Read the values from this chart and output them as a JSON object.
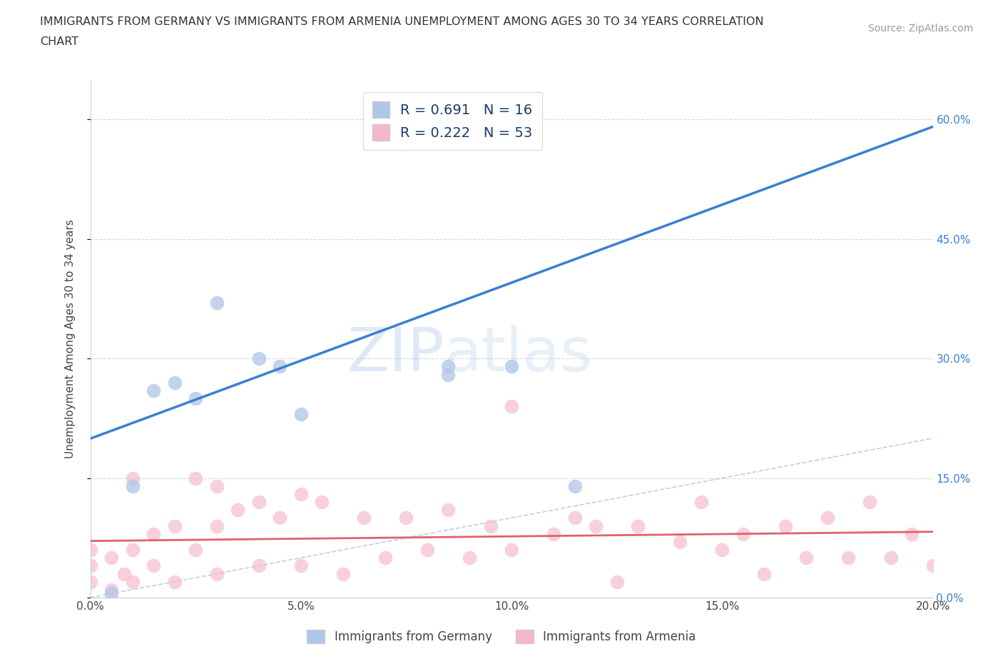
{
  "title_line1": "IMMIGRANTS FROM GERMANY VS IMMIGRANTS FROM ARMENIA UNEMPLOYMENT AMONG AGES 30 TO 34 YEARS CORRELATION",
  "title_line2": "CHART",
  "source": "Source: ZipAtlas.com",
  "ylabel": "Unemployment Among Ages 30 to 34 years",
  "xlim": [
    0.0,
    0.2
  ],
  "ylim": [
    0.0,
    0.65
  ],
  "xticks": [
    0.0,
    0.05,
    0.1,
    0.15,
    0.2
  ],
  "yticks": [
    0.0,
    0.15,
    0.3,
    0.45,
    0.6
  ],
  "germany_color": "#aec6e8",
  "armenia_color": "#f5b8c8",
  "germany_R": 0.691,
  "germany_N": 16,
  "armenia_R": 0.222,
  "armenia_N": 53,
  "germany_line_color": "#3a7fd5",
  "armenia_line_color": "#e06070",
  "ref_line_color": "#b0c8e8",
  "watermark_zip": "ZIP",
  "watermark_atlas": "atlas",
  "background_color": "#ffffff",
  "legend_R_color": "#1a3a6b",
  "right_tick_color": "#3a7fd5",
  "germany_x": [
    0.005,
    0.01,
    0.015,
    0.02,
    0.025,
    0.03,
    0.04,
    0.045,
    0.05,
    0.07,
    0.075,
    0.085,
    0.085,
    0.1,
    0.1,
    0.115
  ],
  "germany_y": [
    0.005,
    0.14,
    0.26,
    0.27,
    0.25,
    0.37,
    0.3,
    0.29,
    0.23,
    0.6,
    0.57,
    0.29,
    0.28,
    0.29,
    0.61,
    0.14
  ],
  "armenia_x": [
    0.0,
    0.0,
    0.0,
    0.005,
    0.005,
    0.008,
    0.01,
    0.01,
    0.01,
    0.015,
    0.015,
    0.02,
    0.02,
    0.025,
    0.025,
    0.03,
    0.03,
    0.03,
    0.035,
    0.04,
    0.04,
    0.045,
    0.05,
    0.05,
    0.055,
    0.06,
    0.065,
    0.07,
    0.075,
    0.08,
    0.085,
    0.09,
    0.095,
    0.1,
    0.1,
    0.11,
    0.115,
    0.12,
    0.125,
    0.13,
    0.14,
    0.145,
    0.15,
    0.155,
    0.16,
    0.165,
    0.17,
    0.175,
    0.18,
    0.185,
    0.19,
    0.195,
    0.2
  ],
  "armenia_y": [
    0.02,
    0.04,
    0.06,
    0.01,
    0.05,
    0.03,
    0.02,
    0.06,
    0.15,
    0.04,
    0.08,
    0.02,
    0.09,
    0.06,
    0.15,
    0.03,
    0.09,
    0.14,
    0.11,
    0.04,
    0.12,
    0.1,
    0.04,
    0.13,
    0.12,
    0.03,
    0.1,
    0.05,
    0.1,
    0.06,
    0.11,
    0.05,
    0.09,
    0.06,
    0.24,
    0.08,
    0.1,
    0.09,
    0.02,
    0.09,
    0.07,
    0.12,
    0.06,
    0.08,
    0.03,
    0.09,
    0.05,
    0.1,
    0.05,
    0.12,
    0.05,
    0.08,
    0.04
  ]
}
